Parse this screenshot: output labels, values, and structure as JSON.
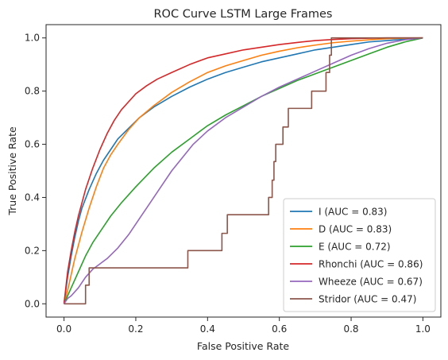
{
  "chart_data": {
    "type": "line",
    "title": "ROC Curve LSTM Large Frames",
    "xlabel": "False Positive Rate",
    "ylabel": "True Positive Rate",
    "xlim": [
      -0.05,
      1.05
    ],
    "ylim": [
      -0.05,
      1.05
    ],
    "xticks": [
      0.0,
      0.2,
      0.4,
      0.6,
      0.8,
      1.0
    ],
    "yticks": [
      0.0,
      0.2,
      0.4,
      0.6,
      0.8,
      1.0
    ],
    "xtick_labels": [
      "0.0",
      "0.2",
      "0.4",
      "0.6",
      "0.8",
      "1.0"
    ],
    "ytick_labels": [
      "0.0",
      "0.2",
      "0.4",
      "0.6",
      "0.8",
      "1.0"
    ],
    "grid": false,
    "legend_position": "lower-right",
    "series": [
      {
        "name": "I (AUC = 0.83)",
        "color": "#1f77b4",
        "step": false,
        "x": [
          0,
          0.005,
          0.01,
          0.02,
          0.03,
          0.04,
          0.05,
          0.07,
          0.09,
          0.11,
          0.13,
          0.15,
          0.18,
          0.21,
          0.25,
          0.3,
          0.35,
          0.4,
          0.45,
          0.5,
          0.55,
          0.6,
          0.65,
          0.7,
          0.75,
          0.8,
          0.85,
          0.9,
          0.95,
          1.0
        ],
        "y": [
          0,
          0.05,
          0.1,
          0.18,
          0.25,
          0.31,
          0.36,
          0.43,
          0.49,
          0.54,
          0.58,
          0.62,
          0.66,
          0.7,
          0.74,
          0.78,
          0.815,
          0.845,
          0.87,
          0.89,
          0.91,
          0.925,
          0.94,
          0.955,
          0.965,
          0.975,
          0.985,
          0.99,
          0.995,
          1.0
        ]
      },
      {
        "name": "D (AUC = 0.83)",
        "color": "#ff7f0e",
        "step": false,
        "x": [
          0,
          0.01,
          0.02,
          0.03,
          0.04,
          0.05,
          0.07,
          0.09,
          0.11,
          0.13,
          0.15,
          0.18,
          0.21,
          0.25,
          0.3,
          0.35,
          0.4,
          0.45,
          0.5,
          0.55,
          0.6,
          0.65,
          0.7,
          0.75,
          0.8,
          0.85,
          0.9,
          0.95,
          1.0
        ],
        "y": [
          0,
          0.05,
          0.11,
          0.17,
          0.22,
          0.27,
          0.36,
          0.44,
          0.51,
          0.56,
          0.6,
          0.655,
          0.7,
          0.745,
          0.795,
          0.835,
          0.87,
          0.895,
          0.915,
          0.935,
          0.95,
          0.963,
          0.973,
          0.982,
          0.988,
          0.993,
          0.997,
          0.999,
          1.0
        ]
      },
      {
        "name": "E (AUC = 0.72)",
        "color": "#2ca02c",
        "step": false,
        "x": [
          0,
          0.01,
          0.02,
          0.04,
          0.06,
          0.08,
          0.1,
          0.13,
          0.16,
          0.2,
          0.25,
          0.3,
          0.35,
          0.4,
          0.45,
          0.5,
          0.55,
          0.6,
          0.65,
          0.7,
          0.75,
          0.8,
          0.85,
          0.9,
          0.95,
          1.0
        ],
        "y": [
          0,
          0.03,
          0.06,
          0.12,
          0.18,
          0.23,
          0.27,
          0.33,
          0.38,
          0.44,
          0.51,
          0.57,
          0.62,
          0.67,
          0.71,
          0.745,
          0.78,
          0.81,
          0.84,
          0.865,
          0.89,
          0.915,
          0.94,
          0.965,
          0.985,
          1.0
        ]
      },
      {
        "name": "Rhonchi (AUC = 0.86)",
        "color": "#d62728",
        "step": false,
        "x": [
          0,
          0.005,
          0.01,
          0.02,
          0.03,
          0.04,
          0.05,
          0.06,
          0.08,
          0.1,
          0.12,
          0.14,
          0.16,
          0.18,
          0.2,
          0.23,
          0.26,
          0.3,
          0.35,
          0.4,
          0.45,
          0.5,
          0.55,
          0.6,
          0.65,
          0.7,
          0.75,
          0.8,
          0.85,
          0.9,
          0.95,
          1.0
        ],
        "y": [
          0,
          0.06,
          0.12,
          0.2,
          0.27,
          0.33,
          0.38,
          0.43,
          0.51,
          0.58,
          0.64,
          0.69,
          0.73,
          0.76,
          0.79,
          0.82,
          0.845,
          0.87,
          0.9,
          0.925,
          0.94,
          0.955,
          0.965,
          0.975,
          0.983,
          0.99,
          0.994,
          0.997,
          0.999,
          1.0,
          1.0,
          1.0
        ]
      },
      {
        "name": "Wheeze (AUC = 0.67)",
        "color": "#9467bd",
        "step": false,
        "x": [
          0,
          0.01,
          0.02,
          0.04,
          0.06,
          0.08,
          0.1,
          0.12,
          0.15,
          0.18,
          0.21,
          0.24,
          0.27,
          0.3,
          0.33,
          0.36,
          0.4,
          0.45,
          0.5,
          0.55,
          0.6,
          0.65,
          0.7,
          0.75,
          0.8,
          0.85,
          0.9,
          0.95,
          1.0
        ],
        "y": [
          0,
          0.02,
          0.03,
          0.06,
          0.1,
          0.13,
          0.15,
          0.17,
          0.21,
          0.26,
          0.32,
          0.38,
          0.44,
          0.5,
          0.55,
          0.6,
          0.65,
          0.7,
          0.74,
          0.78,
          0.815,
          0.845,
          0.875,
          0.905,
          0.935,
          0.96,
          0.98,
          0.993,
          1.0
        ]
      },
      {
        "name": "Stridor (AUC = 0.47)",
        "color": "#8c564b",
        "step": true,
        "x": [
          0,
          0.06,
          0.06,
          0.07,
          0.07,
          0.345,
          0.345,
          0.44,
          0.44,
          0.455,
          0.455,
          0.57,
          0.57,
          0.58,
          0.58,
          0.585,
          0.585,
          0.59,
          0.59,
          0.61,
          0.61,
          0.625,
          0.625,
          0.635,
          0.635,
          0.69,
          0.69,
          0.73,
          0.73,
          0.74,
          0.74,
          0.745,
          0.745,
          1.0
        ],
        "y": [
          0,
          0,
          0.07,
          0.07,
          0.135,
          0.135,
          0.2,
          0.2,
          0.265,
          0.265,
          0.335,
          0.335,
          0.4,
          0.4,
          0.465,
          0.465,
          0.535,
          0.535,
          0.6,
          0.6,
          0.665,
          0.665,
          0.735,
          0.735,
          0.735,
          0.735,
          0.8,
          0.8,
          0.87,
          0.87,
          0.935,
          0.935,
          1.0,
          1.0
        ]
      }
    ]
  }
}
